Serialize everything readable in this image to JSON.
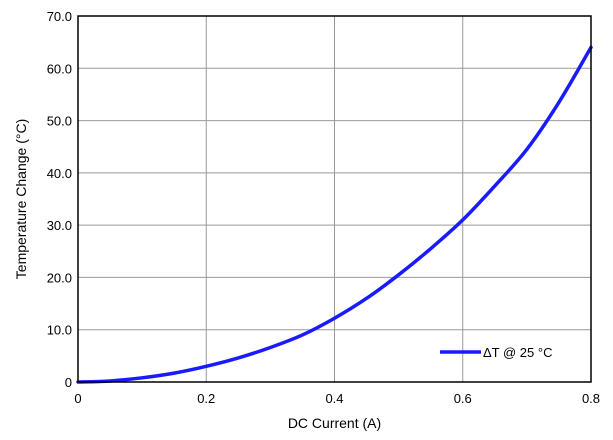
{
  "chart_data": {
    "type": "line",
    "xlabel": "DC Current (A)",
    "ylabel": "Temperature Change (°C)",
    "xlim": [
      0,
      0.8
    ],
    "ylim": [
      0,
      70
    ],
    "grid": true,
    "legend_position": "bottom-right",
    "x_ticks": [
      "0",
      "0.2",
      "0.4",
      "0.6",
      "0.8"
    ],
    "y_ticks": [
      "0",
      "10.0",
      "20.0",
      "30.0",
      "40.0",
      "50.0",
      "60.0",
      "70.0"
    ],
    "series": [
      {
        "name": "ΔT @ 25 °C",
        "color": "#1a1aff",
        "x": [
          0,
          0.05,
          0.1,
          0.15,
          0.2,
          0.25,
          0.3,
          0.35,
          0.4,
          0.45,
          0.5,
          0.55,
          0.6,
          0.65,
          0.7,
          0.75,
          0.8
        ],
        "y": [
          0,
          0.2,
          0.8,
          1.7,
          3.0,
          4.6,
          6.6,
          9.0,
          12.2,
          16.0,
          20.5,
          25.5,
          31.0,
          37.5,
          44.5,
          53.5,
          64.0
        ]
      }
    ]
  }
}
